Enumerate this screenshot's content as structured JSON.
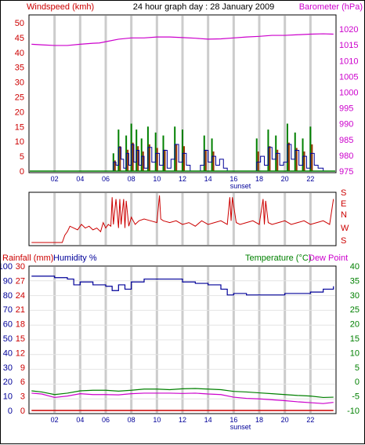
{
  "colors": {
    "wind": "#cc0000",
    "baro": "#cc00cc",
    "gust_green": "#008000",
    "wind_blue": "#000099",
    "dir": "#cc0000",
    "humidity": "#000099",
    "temperature": "#008000",
    "dew_point": "#cc00cc",
    "rainfall": "#cc0000",
    "grid": "#cccccc",
    "sunset_label": "#000099"
  },
  "header": {
    "title": "24 hour graph day : 28 January 2009"
  },
  "chart_data": [
    {
      "type": "line",
      "title": "24 hour graph day : 28 January 2009",
      "ylabel_left": "Windspeed (kmh)",
      "ylabel_right": "Barometer (hPa)",
      "x_ticks": [
        "02",
        "04",
        "06",
        "08",
        "10",
        "12",
        "14",
        "16",
        "18",
        "20",
        "22"
      ],
      "x_annotation": "sunset",
      "y_ticks_left": [
        "0",
        "5",
        "10",
        "15",
        "20",
        "25",
        "30",
        "35",
        "40",
        "45",
        "50"
      ],
      "y_ticks_right": [
        "975",
        "980",
        "985",
        "990",
        "995",
        "1000",
        "1005",
        "1010",
        "1015",
        "1020"
      ],
      "ylim_left": [
        0,
        50
      ],
      "ylim_right": [
        975,
        1022
      ],
      "series": [
        {
          "axis": "right",
          "x": [
            0.2,
            1,
            2,
            3,
            4,
            5,
            5.5,
            6,
            7,
            8,
            9,
            10,
            11,
            12,
            13,
            14,
            15,
            16,
            17,
            18,
            19,
            20,
            21,
            22,
            23,
            23.8
          ],
          "values": [
            1015.2,
            1015.0,
            1014.8,
            1014.8,
            1015.2,
            1015.5,
            1015.6,
            1016.0,
            1016.8,
            1017.2,
            1017.2,
            1017.5,
            1017.5,
            1017.3,
            1017.1,
            1016.8,
            1016.9,
            1017.2,
            1017.5,
            1017.7,
            1018.0,
            1018.0,
            1018.2,
            1018.4,
            1018.5,
            1018.4
          ]
        },
        {
          "axis": "left",
          "x": [
            0.2,
            6.4,
            6.6,
            6.8,
            7.0,
            7.2,
            7.4,
            7.6,
            7.8,
            8.0,
            8.2,
            8.4,
            8.6,
            8.8,
            9.0,
            9.3,
            9.6,
            9.9,
            10.2,
            10.5,
            10.8,
            11.1,
            11.4,
            11.7,
            12.0,
            12.3,
            12.6,
            13.0,
            13.4,
            13.7,
            14.0,
            14.3,
            14.6,
            14.9,
            15.2,
            15.5,
            15.8,
            16.1,
            16.4,
            17.0,
            17.4,
            17.8,
            18.1,
            18.4,
            18.7,
            19.0,
            19.3,
            19.6,
            19.9,
            20.2,
            20.5,
            20.8,
            21.1,
            21.4,
            21.7,
            22.0,
            22.3,
            22.6,
            23.0,
            23.8
          ],
          "values": [
            0,
            0,
            3,
            2,
            8,
            4,
            1,
            6,
            2,
            9,
            3,
            7,
            2,
            5,
            1,
            8,
            3,
            6,
            2,
            7,
            1,
            4,
            9,
            3,
            6,
            2,
            0,
            0,
            2,
            7,
            3,
            5,
            2,
            4,
            1,
            0,
            0,
            0,
            0,
            0,
            0,
            3,
            5,
            2,
            8,
            4,
            6,
            2,
            3,
            9,
            4,
            7,
            2,
            5,
            1,
            6,
            2,
            1,
            0,
            0
          ]
        },
        {
          "axis": "left",
          "x": [
            6.6,
            7.0,
            7.6,
            8.0,
            8.4,
            8.8,
            9.3,
            9.9,
            10.5,
            11.4,
            12.0,
            13.7,
            14.3,
            17.8,
            18.7,
            19.3,
            20.2,
            20.8,
            21.4,
            22.0
          ],
          "values": [
            6,
            14,
            12,
            16,
            14,
            11,
            15,
            13,
            12,
            15,
            14,
            12,
            11,
            11,
            14,
            12,
            16,
            13,
            11,
            15
          ]
        }
      ]
    },
    {
      "type": "line",
      "ylabel_right": [
        "S",
        "E",
        "N",
        "W",
        "S"
      ],
      "series": [
        {
          "x": [
            0.2,
            2.6,
            2.8,
            3.0,
            3.2,
            3.5,
            3.8,
            4.1,
            4.4,
            4.7,
            5.0,
            5.3,
            5.6,
            5.8,
            6.0,
            6.2,
            6.4,
            6.5,
            6.6,
            6.8,
            7.0,
            7.1,
            7.2,
            7.4,
            7.5,
            7.6,
            7.8,
            8.0,
            8.3,
            8.6,
            9.0,
            9.5,
            10.0,
            10.2,
            10.3,
            10.5,
            11.0,
            11.5,
            12.0,
            12.5,
            13.0,
            13.5,
            14.0,
            14.5,
            15.0,
            15.5,
            15.7,
            15.8,
            15.9,
            16.2,
            16.5,
            17.0,
            17.5,
            18.0,
            18.3,
            18.4,
            18.5,
            18.7,
            19.0,
            19.5,
            20.0,
            20.5,
            21.0,
            21.5,
            22.0,
            22.5,
            23.0,
            23.5,
            23.8
          ],
          "values": [
            -0.3,
            -0.3,
            -0.1,
            0.0,
            0.15,
            0.1,
            0.05,
            0.2,
            0.1,
            0.15,
            0.05,
            0.1,
            0.0,
            0.25,
            0.1,
            0.2,
            0.15,
            0.95,
            0.2,
            0.9,
            0.1,
            0.9,
            0.2,
            0.9,
            0.1,
            0.85,
            0.15,
            0.4,
            0.2,
            0.3,
            0.35,
            0.3,
            0.25,
            1.0,
            0.35,
            0.3,
            0.25,
            0.3,
            0.2,
            0.25,
            0.15,
            0.3,
            0.2,
            0.25,
            0.3,
            0.2,
            0.95,
            0.3,
            0.95,
            0.25,
            0.2,
            0.25,
            0.3,
            0.2,
            0.9,
            0.2,
            0.85,
            0.25,
            0.2,
            0.25,
            0.3,
            0.2,
            0.25,
            0.3,
            0.2,
            0.25,
            0.3,
            0.2,
            0.9
          ]
        }
      ]
    },
    {
      "type": "line",
      "ylabel_left": "Rainfall (mm)",
      "ylabel_left2": "Humidity %",
      "ylabel_right": "Temperature (°C)",
      "ylabel_right2": "Dew Point",
      "x_ticks": [
        "02",
        "04",
        "06",
        "08",
        "10",
        "12",
        "14",
        "16",
        "18",
        "20",
        "22"
      ],
      "x_annotation": "sunset",
      "y_ticks_left_humidity": [
        "0",
        "10",
        "20",
        "30",
        "40",
        "50",
        "60",
        "70",
        "80",
        "90",
        "100"
      ],
      "y_ticks_left_rain": [
        "0",
        "3",
        "6",
        "9",
        "12",
        "15",
        "18",
        "21",
        "24",
        "27",
        "30"
      ],
      "y_ticks_right": [
        "-10",
        "-5",
        "0",
        "5",
        "10",
        "15",
        "20",
        "25",
        "30",
        "35",
        "40"
      ],
      "ylim_left": [
        0,
        100
      ],
      "ylim_right": [
        -10,
        40
      ],
      "series": [
        {
          "name": "Humidity %",
          "axis": "left",
          "x": [
            0.2,
            1,
            2,
            3,
            3.5,
            4,
            5,
            6,
            6.5,
            7,
            7.5,
            8,
            9,
            10,
            11,
            12,
            13,
            14,
            15,
            15.5,
            16,
            17,
            18,
            19,
            20,
            21,
            22,
            23,
            23.8
          ],
          "values": [
            93,
            93,
            92,
            91,
            87,
            89,
            87,
            86,
            83,
            87,
            84,
            89,
            91,
            91,
            91,
            89,
            88,
            87,
            84,
            80,
            81,
            80,
            80,
            80,
            81,
            81,
            82,
            84,
            86
          ]
        },
        {
          "name": "Temperature (°C)",
          "axis": "right",
          "x": [
            0.2,
            1,
            2,
            3,
            4,
            5,
            6,
            7,
            8,
            9,
            10,
            11,
            12,
            13,
            14,
            15,
            16,
            17,
            18,
            19,
            20,
            21,
            22,
            23,
            23.8
          ],
          "values": [
            -3.2,
            -3.6,
            -4.5,
            -4.0,
            -3.2,
            -3.0,
            -3.0,
            -3.3,
            -3.0,
            -2.6,
            -2.6,
            -2.8,
            -2.5,
            -2.4,
            -2.6,
            -2.8,
            -3.4,
            -3.6,
            -3.9,
            -4.2,
            -4.5,
            -4.8,
            -5.0,
            -5.5,
            -5.4
          ]
        },
        {
          "name": "Dew Point",
          "axis": "right",
          "x": [
            0.2,
            1,
            2,
            3,
            4,
            5,
            6,
            7,
            8,
            9,
            10,
            11,
            12,
            13,
            14,
            15,
            16,
            17,
            18,
            19,
            20,
            21,
            22,
            23,
            23.8
          ],
          "values": [
            -4.0,
            -4.3,
            -5.5,
            -5.0,
            -4.2,
            -4.5,
            -4.5,
            -4.6,
            -4.2,
            -4.0,
            -4.0,
            -4.0,
            -4.1,
            -4.0,
            -4.3,
            -4.5,
            -5.4,
            -5.8,
            -6.0,
            -6.3,
            -6.6,
            -7.0,
            -7.3,
            -7.6,
            -7.2
          ]
        },
        {
          "name": "Rainfall (mm)",
          "axis": "left_rain",
          "x": [
            0.2,
            23.8
          ],
          "values": [
            0,
            0
          ]
        }
      ]
    }
  ]
}
